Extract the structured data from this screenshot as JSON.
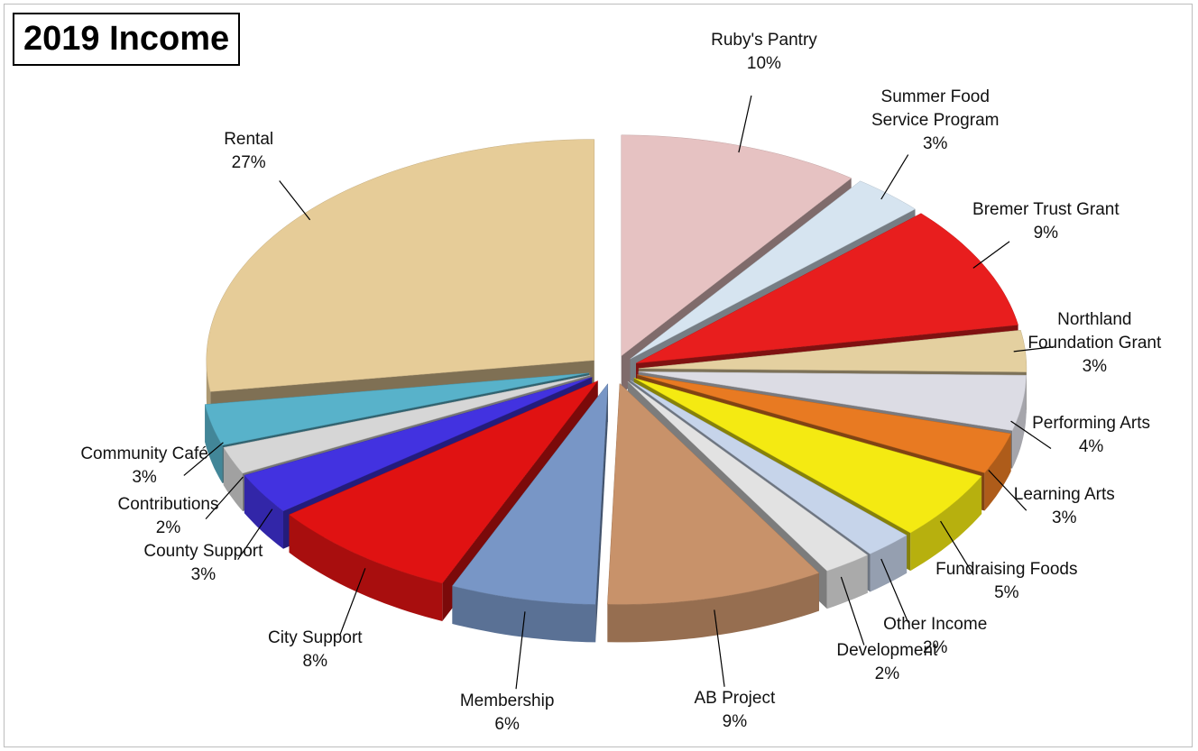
{
  "chart_data": {
    "type": "pie",
    "title": "2019 Income",
    "categories": [
      "Ruby's Pantry",
      "Summer Food Service Program",
      "Bremer Trust Grant",
      "Northland Foundation Grant",
      "Performing Arts",
      "Learning Arts",
      "Fundraising Foods",
      "Other Income",
      "Development",
      "AB Project",
      "Membership",
      "City Support",
      "County Support",
      "Contributions",
      "Community Café",
      "Rental"
    ],
    "values": [
      10,
      3,
      9,
      3,
      4,
      3,
      5,
      2,
      2,
      9,
      6,
      8,
      3,
      2,
      3,
      27
    ],
    "value_labels": [
      "10%",
      "3%",
      "9%",
      "3%",
      "4%",
      "3%",
      "5%",
      "2%",
      "2%",
      "9%",
      "6%",
      "8%",
      "3%",
      "2%",
      "3%",
      "27%"
    ],
    "colors": [
      "#e6c2c2",
      "#d6e4f0",
      "#e81e1e",
      "#e4d0a0",
      "#dcdce4",
      "#e87a22",
      "#f4ea12",
      "#c6d4ea",
      "#e2e2e2",
      "#c8926a",
      "#7896c6",
      "#e01212",
      "#4232e0",
      "#d6d6d6",
      "#58b2ca",
      "#e6cc98"
    ]
  }
}
